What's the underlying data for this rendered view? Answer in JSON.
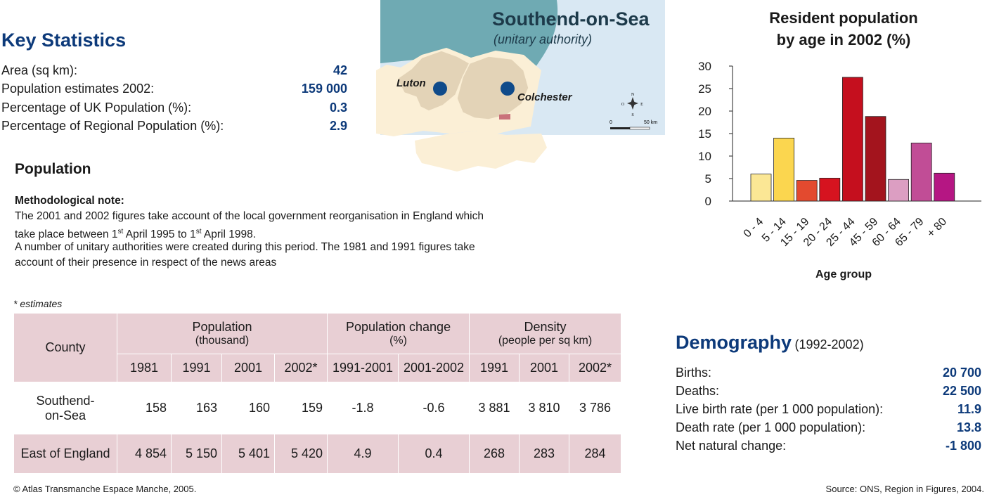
{
  "key_stats": {
    "title": "Key Statistics",
    "rows": [
      {
        "label": "Area (sq km):",
        "value": "42"
      },
      {
        "label": "Population estimates 2002:",
        "value": "159 000"
      },
      {
        "label": "Percentage of UK Population (%):",
        "value": "0.3"
      },
      {
        "label": "Percentage of Regional Population (%):",
        "value": "2.9"
      }
    ]
  },
  "map": {
    "title": "Southend-on-Sea",
    "subtitle": "(unitary authority)",
    "city1": "Luton",
    "city2": "Colchester",
    "compass_n": "N",
    "compass_s": "S",
    "compass_e": "E",
    "compass_o": "O",
    "scale_zero": "0",
    "scale_max": "50 km",
    "colors": {
      "sea": "#6faab3",
      "sea_light": "#d9e8f3",
      "land": "#fbefd6",
      "region": "#e3d3b7",
      "city": "#0f4a8a",
      "highlight": "#c9717a"
    }
  },
  "population": {
    "title": "Population",
    "note_title": "Methodological note:",
    "note_l1": "The 2001 and 2002 figures take account of the local government reorganisation in England which",
    "note_l2a": "take place between 1",
    "note_sup1": "st",
    "note_l2b": " April 1995 to 1",
    "note_sup2": "st",
    "note_l2c": " April 1998.",
    "note_l3": "A number of unitary authorities were created during this period. The 1981 and 1991 figures take",
    "note_l4": "account of their presence in respect of the news areas",
    "estimates_note": "* estimates"
  },
  "table": {
    "county_header": "County",
    "pop_header": "Population",
    "pop_sub": "(thousand)",
    "change_header": "Population change",
    "change_sub": "(%)",
    "density_header": "Density",
    "density_sub": "(people per sq km)",
    "years": [
      "1981",
      "1991",
      "2001",
      "2002*",
      "1991-2001",
      "2001-2002",
      "1991",
      "2001",
      "2002*"
    ],
    "row1": {
      "name_l1": "Southend-",
      "name_l2": "on-Sea",
      "values": [
        "158",
        "163",
        "160",
        "159",
        "-1.8",
        "-0.6",
        "3 881",
        "3 810",
        "3 786"
      ]
    },
    "row2": {
      "name": "East of England",
      "values": [
        "4 854",
        "5 150",
        "5 401",
        "5 420",
        "4.9",
        "0.4",
        "268",
        "283",
        "284"
      ]
    }
  },
  "chart_data": {
    "type": "bar",
    "title_l1": "Resident population",
    "title_l2": "by age in 2002 (%)",
    "xlabel": "Age group",
    "ylabel": "",
    "ylim": [
      0,
      30
    ],
    "yticks": [
      0,
      5,
      10,
      15,
      20,
      25,
      30
    ],
    "categories": [
      "0 - 4",
      "5 - 14",
      "15 - 19",
      "20 - 24",
      "25 - 44",
      "45 - 59",
      "60 - 64",
      "65 - 79",
      "+ 80"
    ],
    "values": [
      6.0,
      14.0,
      4.6,
      5.1,
      27.5,
      18.8,
      4.8,
      12.9,
      6.2
    ],
    "colors": [
      "#fbe795",
      "#fbd64f",
      "#e34a2f",
      "#d6131f",
      "#c50f1e",
      "#a3141d",
      "#dc9ec2",
      "#c14d96",
      "#b51683"
    ],
    "grid": false,
    "legend": "none"
  },
  "demography": {
    "title": "Demography",
    "period": "(1992-2002)",
    "rows": [
      {
        "label": "Births:",
        "value": "20 700"
      },
      {
        "label": "Deaths:",
        "value": "22 500"
      },
      {
        "label": "Live birth rate (per 1 000 population):",
        "value": "11.9"
      },
      {
        "label": "Death rate (per 1 000 population):",
        "value": "13.8"
      },
      {
        "label": "Net natural change:",
        "value": "-1 800"
      }
    ]
  },
  "footer": {
    "copyright": "© Atlas Transmanche Espace Manche, 2005.",
    "source": "Source: ONS, Region in Figures, 2004."
  }
}
